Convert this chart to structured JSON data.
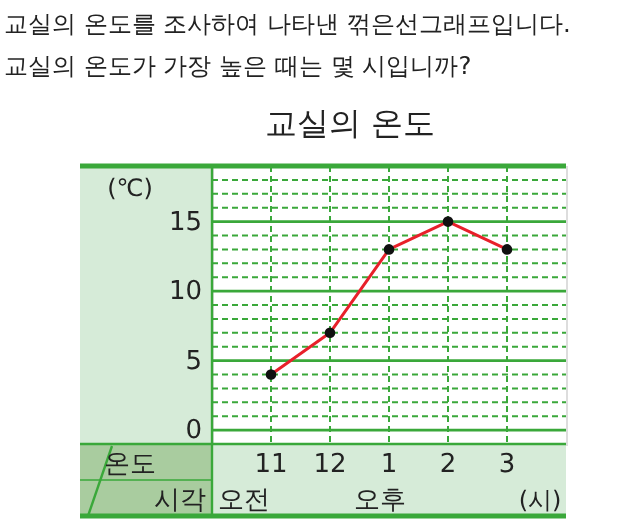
{
  "chart_data": {
    "type": "line",
    "title": "교실의 온도",
    "annotations": [
      "교실의 온도를 조사하여 나타낸 꺾은선그래프입니다.",
      "교실의 온도가 가장 높은 때는 몇 시입니까?",
      "온도",
      "시각",
      "오전",
      "오후"
    ],
    "xlabel": "(시)",
    "ylabel": "(℃)",
    "categories": [
      "11",
      "12",
      "1",
      "2",
      "3"
    ],
    "series": [
      {
        "color": "#e8202a",
        "values": [
          4,
          7,
          13,
          15,
          13
        ]
      }
    ],
    "ylim": [
      -1,
      19
    ],
    "yticks": [
      0,
      {
        "value": 1,
        "label": null
      },
      {
        "value": 2,
        "label": null
      },
      {
        "value": 3,
        "label": null
      },
      {
        "value": 4,
        "label": null
      },
      5,
      {
        "value": 6,
        "label": null
      },
      {
        "value": 7,
        "label": null
      },
      {
        "value": 8,
        "label": null
      },
      {
        "value": 9,
        "label": null
      },
      10,
      {
        "value": 11,
        "label": null
      },
      {
        "value": 12,
        "label": null
      },
      {
        "value": 13,
        "label": null
      },
      {
        "value": 14,
        "label": null
      },
      15,
      {
        "value": 16,
        "label": null
      },
      {
        "value": 17,
        "label": null
      },
      {
        "value": 18,
        "label": null
      }
    ],
    "grid": true,
    "marker": "circle",
    "line_style": "solid"
  }
}
